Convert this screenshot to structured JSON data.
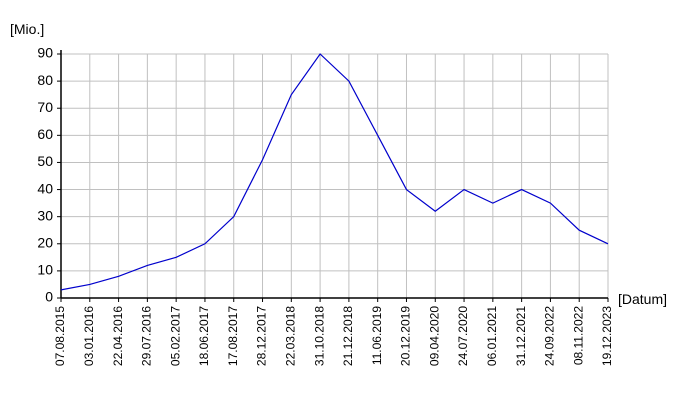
{
  "chart_data": {
    "type": "line",
    "y_label": "[Mio.]",
    "x_label": "[Datum]",
    "categories": [
      "07.08.2015",
      "03.01.2016",
      "22.04.2016",
      "29.07.2016",
      "05.02.2017",
      "18.06.2017",
      "17.08.2017",
      "28.12.2017",
      "22.03.2018",
      "31.10.2018",
      "21.12.2018",
      "11.06.2019",
      "20.12.2019",
      "09.04.2020",
      "24.07.2020",
      "06.01.2021",
      "31.12.2021",
      "24.09.2022",
      "08.11.2022",
      "19.12.2023"
    ],
    "series": [
      {
        "color": "#0000cc",
        "values": [
          3,
          5,
          8,
          12,
          15,
          20,
          30,
          51,
          75,
          90,
          80,
          60,
          40,
          32,
          40,
          35,
          40,
          35,
          25,
          20
        ]
      }
    ],
    "ylim": [
      0,
      90
    ],
    "yticks": [
      0,
      10,
      20,
      30,
      40,
      50,
      60,
      70,
      80,
      90
    ],
    "grid": true
  }
}
